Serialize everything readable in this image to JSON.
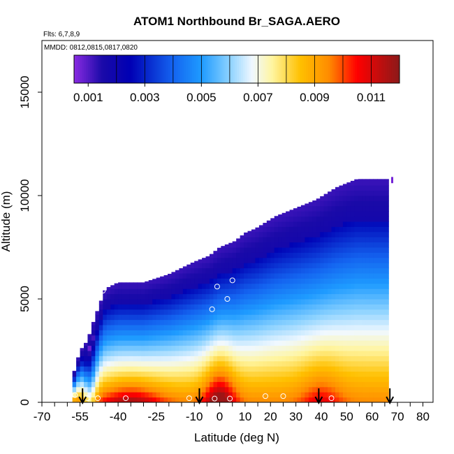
{
  "chart_data": {
    "type": "heatmap",
    "title": "ATOM1 Northbound Br_SAGA.AERO",
    "flights_note": "Flts: 6,7,8,9",
    "dates_note": "MMDD: 0812,0815,0817,0820",
    "xlabel": "Latitude (deg N)",
    "ylabel": "Altitude (m)",
    "xlim": [
      -70,
      84
    ],
    "ylim": [
      0,
      17500
    ],
    "x_tick_labels": [
      "-70",
      "-55",
      "-40",
      "-25",
      "-10",
      "0",
      "10",
      "20",
      "30",
      "40",
      "50",
      "60",
      "70",
      "80"
    ],
    "x_tick_values": [
      -70,
      -55,
      -40,
      -25,
      -10,
      0,
      10,
      20,
      30,
      40,
      50,
      60,
      70,
      80
    ],
    "x_minor_tick_step": 5,
    "y_tick_labels": [
      "0",
      "5000",
      "10000",
      "15000"
    ],
    "y_tick_values": [
      0,
      5000,
      10000,
      15000
    ],
    "grid": false,
    "colorbar": {
      "range": [
        0.0005,
        0.012
      ],
      "tick_values": [
        0.001,
        0.003,
        0.005,
        0.007,
        0.009,
        0.011
      ],
      "tick_labels": [
        "0.001",
        "0.003",
        "0.005",
        "0.007",
        "0.009",
        "0.011"
      ],
      "divisions": [
        0.002,
        0.003,
        0.004,
        0.005,
        0.006,
        0.007,
        0.008,
        0.009,
        0.01,
        0.011
      ],
      "color_stops": [
        {
          "v": 0.0005,
          "c": "#8a2be2"
        },
        {
          "v": 0.0015,
          "c": "#1a0aa8"
        },
        {
          "v": 0.0025,
          "c": "#0000b4"
        },
        {
          "v": 0.004,
          "c": "#1464f0"
        },
        {
          "v": 0.005,
          "c": "#1e9bff"
        },
        {
          "v": 0.006,
          "c": "#8cd2ff"
        },
        {
          "v": 0.0068,
          "c": "#f0f8ff"
        },
        {
          "v": 0.0075,
          "c": "#fff5a0"
        },
        {
          "v": 0.0085,
          "c": "#ffc000"
        },
        {
          "v": 0.0095,
          "c": "#ff8c00"
        },
        {
          "v": 0.0105,
          "c": "#ff0000"
        },
        {
          "v": 0.012,
          "c": "#8b1a1a"
        }
      ]
    },
    "field": {
      "lat_bins": [
        -58,
        -55,
        -52,
        -50,
        -48,
        -45,
        -40,
        -35,
        -30,
        -25,
        -20,
        -15,
        -10,
        -8,
        -6,
        -4,
        -2,
        0,
        2,
        4,
        6,
        8,
        10,
        14,
        18,
        22,
        26,
        30,
        34,
        38,
        42,
        46,
        50,
        54,
        58,
        62,
        64,
        66
      ],
      "top_altitude_m": [
        1200,
        2500,
        3000,
        3800,
        4500,
        5500,
        5800,
        5800,
        5800,
        6000,
        6200,
        6500,
        6800,
        6900,
        7000,
        7100,
        7300,
        7500,
        7600,
        7700,
        7800,
        8000,
        8200,
        8400,
        8700,
        9000,
        9200,
        9400,
        9600,
        9800,
        10100,
        10400,
        10600,
        10800,
        10800,
        10800,
        10800,
        10800
      ],
      "bottom_altitude_m": 0,
      "upper_band_br": 0.0012,
      "lower_band_br": 0.0025
    },
    "markers": {
      "circles": [
        {
          "lat": -57,
          "alt": 350
        },
        {
          "lat": -52,
          "alt": 200
        },
        {
          "lat": -48,
          "alt": 200
        },
        {
          "lat": -46,
          "alt": 5400
        },
        {
          "lat": -37,
          "alt": 200
        },
        {
          "lat": -12,
          "alt": 200
        },
        {
          "lat": -3,
          "alt": 4500
        },
        {
          "lat": -1,
          "alt": 5600
        },
        {
          "lat": 3,
          "alt": 5000
        },
        {
          "lat": 5,
          "alt": 5900
        },
        {
          "lat": -2,
          "alt": 180
        },
        {
          "lat": 4,
          "alt": 180
        },
        {
          "lat": 18,
          "alt": 300
        },
        {
          "lat": 25,
          "alt": 300
        },
        {
          "lat": 44,
          "alt": 200
        }
      ],
      "arrows_lat": [
        -54,
        -8,
        39,
        67
      ]
    }
  }
}
